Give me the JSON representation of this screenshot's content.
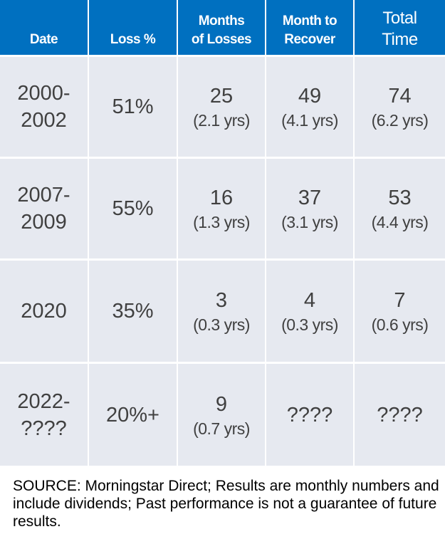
{
  "table": {
    "headers": {
      "date": "Date",
      "loss": "Loss %",
      "months_of_losses": [
        "Months",
        "of Losses"
      ],
      "month_to_recover": [
        "Month to",
        "Recover"
      ],
      "total_time": [
        "Total",
        "Time"
      ]
    },
    "rows": [
      {
        "date": [
          "2000-",
          "2002"
        ],
        "loss": "51%",
        "months": "25",
        "months_yrs": "(2.1 yrs)",
        "recover": "49",
        "recover_yrs": "(4.1 yrs)",
        "total": "74",
        "total_yrs": "(6.2 yrs)"
      },
      {
        "date": [
          "2007-",
          "2009"
        ],
        "loss": "55%",
        "months": "16",
        "months_yrs": "(1.3 yrs)",
        "recover": "37",
        "recover_yrs": "(3.1 yrs)",
        "total": "53",
        "total_yrs": "(4.4 yrs)"
      },
      {
        "date": [
          "2020"
        ],
        "loss": "35%",
        "months": "3",
        "months_yrs": "(0.3 yrs)",
        "recover": "4",
        "recover_yrs": "(0.3 yrs)",
        "total": "7",
        "total_yrs": "(0.6 yrs)"
      },
      {
        "date": [
          "2022-",
          "????"
        ],
        "loss": "20%+",
        "months": "9",
        "months_yrs": "(0.7 yrs)",
        "recover": "????",
        "recover_yrs": "",
        "total": "????",
        "total_yrs": ""
      }
    ]
  },
  "footnote": "SOURCE: Morningstar Direct; Results are monthly numbers and include dividends; Past performance is not a guarantee of future results."
}
